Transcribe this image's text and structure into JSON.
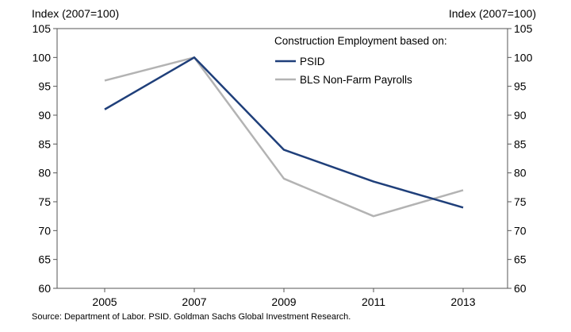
{
  "chart_data": {
    "type": "line",
    "categories": [
      "2005",
      "2007",
      "2009",
      "2011",
      "2013"
    ],
    "ylim": [
      60,
      105
    ],
    "yticks": [
      60,
      65,
      70,
      75,
      80,
      85,
      90,
      95,
      100,
      105
    ],
    "ylabel_left": "Index (2007=100)",
    "ylabel_right": "Index (2007=100)",
    "legend_title": "Construction Employment based on:",
    "legend_position": "top-right",
    "grid": false,
    "series": [
      {
        "name": "PSID",
        "color": "#1f3f7a",
        "values": [
          91,
          100,
          84,
          78.5,
          74
        ]
      },
      {
        "name": "BLS Non-Farm Payrolls",
        "color": "#b3b3b3",
        "values": [
          96,
          100,
          79,
          72.5,
          77
        ]
      }
    ]
  },
  "source": "Source: Department of Labor. PSID. Goldman Sachs Global Investment Research."
}
